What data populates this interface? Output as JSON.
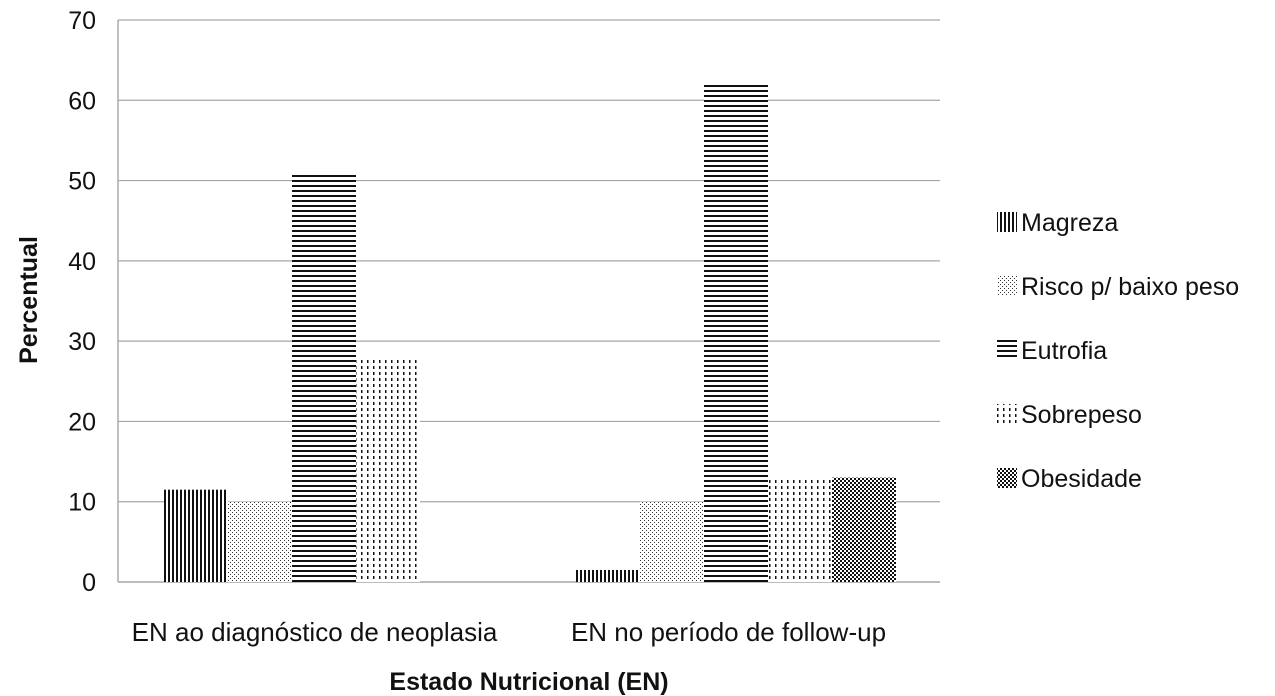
{
  "chart_data": {
    "type": "bar",
    "title": "",
    "xlabel": "Estado Nutricional (EN)",
    "ylabel": "Percentual",
    "ylim": [
      0,
      70
    ],
    "yticks": [
      0,
      10,
      20,
      30,
      40,
      50,
      60,
      70
    ],
    "grid": true,
    "legend_position": "right",
    "categories": [
      "EN ao diagnóstico de neoplasia",
      "EN no período de follow-up"
    ],
    "series": [
      {
        "name": "Magreza",
        "pattern": "vertical-lines",
        "values": [
          11.5,
          1.5
        ]
      },
      {
        "name": "Risco p/ baixo peso",
        "pattern": "fine-dots",
        "values": [
          10,
          10
        ]
      },
      {
        "name": "Eutrofia",
        "pattern": "horizontal-lines",
        "values": [
          51,
          62
        ]
      },
      {
        "name": "Sobrepeso",
        "pattern": "dashed-vertical",
        "values": [
          28,
          13
        ]
      },
      {
        "name": "Obesidade",
        "pattern": "dense-dots",
        "values": [
          0,
          13
        ]
      }
    ],
    "colors": {
      "ink": "#111111",
      "grid": "#a6a6a6",
      "background": "#ffffff"
    }
  }
}
